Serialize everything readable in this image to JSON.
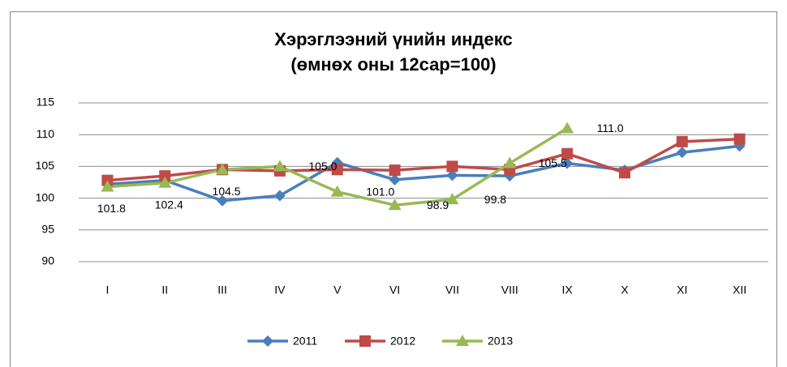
{
  "chart_data": {
    "type": "line",
    "title": [
      "Хэрэглээний үнийн индекс",
      "(өмнөх оны 12сар=100)"
    ],
    "categories": [
      "I",
      "II",
      "III",
      "IV",
      "V",
      "VI",
      "VII",
      "VIII",
      "IX",
      "X",
      "XI",
      "XII"
    ],
    "series": [
      {
        "name": "2011",
        "color": "#4a7ebb",
        "marker": "diamond",
        "values": [
          102.2,
          102.8,
          99.6,
          100.4,
          105.6,
          102.9,
          103.6,
          103.5,
          105.5,
          104.4,
          107.2,
          108.2
        ]
      },
      {
        "name": "2012",
        "color": "#be4b48",
        "marker": "square",
        "values": [
          102.8,
          103.5,
          104.5,
          104.3,
          104.5,
          104.4,
          105.0,
          104.5,
          107.0,
          104.0,
          108.9,
          109.3
        ]
      },
      {
        "name": "2013",
        "color": "#98b954",
        "marker": "triangle",
        "values": [
          101.8,
          102.4,
          104.5,
          105.0,
          101.0,
          98.9,
          99.8,
          105.5,
          111.0,
          null,
          null,
          null
        ],
        "value_labels": [
          "101.8",
          "102.4",
          "104.5",
          "105.0",
          "101.0",
          "98.9",
          "99.8",
          "105.5",
          "111.0",
          null,
          null,
          null
        ]
      }
    ],
    "ylim": [
      90,
      115
    ],
    "yticks": [
      90,
      95,
      100,
      105,
      110,
      115
    ],
    "grid": true,
    "legend": "bottom"
  }
}
